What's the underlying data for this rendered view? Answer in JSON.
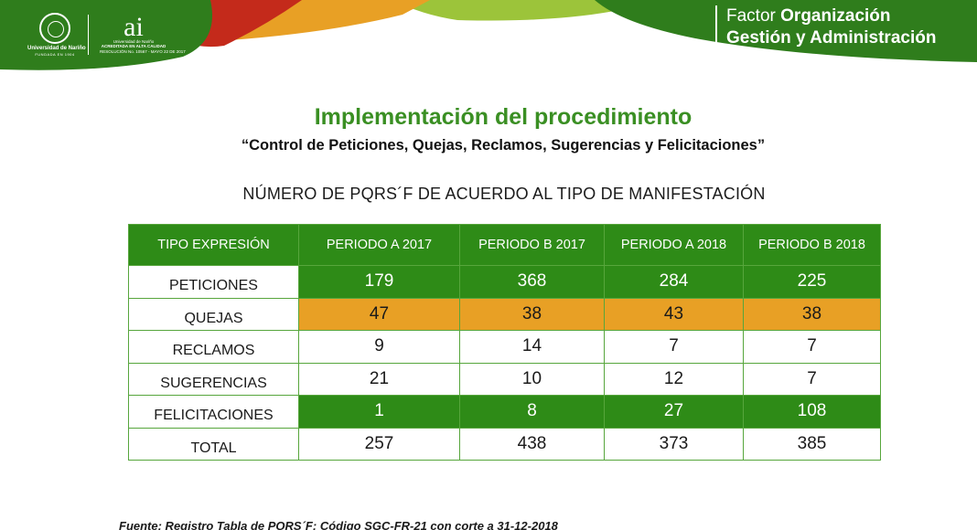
{
  "header": {
    "university_name": "Universidad de Nariño",
    "university_founded": "FUNDADA EN 1904",
    "ai_logo_text": "ai",
    "ai_logo_line1": "Universidad de Nariño",
    "ai_logo_line2": "ACREDITADA EN ALTA CALIDAD",
    "ai_logo_line3": "RESOLUCIÓN No. 10567 - MAYO 22 DE 2017",
    "factor_label": "Factor",
    "factor_name": "Organización",
    "factor_line2": "Gestión y Administración",
    "colors": {
      "green_dark": "#2f7d1c",
      "red": "#c42a1b",
      "orange": "#e8a025",
      "yellow_green": "#9cc43a"
    }
  },
  "title": "Implementación del procedimiento",
  "subtitle": "“Control de Peticiones, Quejas, Reclamos,  Sugerencias y Felicitaciones”",
  "section_title": "NÚMERO DE PQRS´F DE ACUERDO AL TIPO DE MANIFESTACIÓN",
  "table": {
    "headers": [
      "TIPO EXPRESIÓN",
      "PERIODO A 2017",
      "PERIODO B 2017",
      "PERIODO A 2018",
      "PERIODO B 2018"
    ],
    "rows": [
      {
        "label": "PETICIONES",
        "values": [
          "179",
          "368",
          "284",
          "225"
        ],
        "highlight": "green"
      },
      {
        "label": "QUEJAS",
        "values": [
          "47",
          "38",
          "43",
          "38"
        ],
        "highlight": "orange"
      },
      {
        "label": "RECLAMOS",
        "values": [
          "9",
          "14",
          "7",
          "7"
        ],
        "highlight": "none"
      },
      {
        "label": "SUGERENCIAS",
        "values": [
          "21",
          "10",
          "12",
          "7"
        ],
        "highlight": "none"
      },
      {
        "label": "FELICITACIONES",
        "values": [
          "1",
          "8",
          "27",
          "108"
        ],
        "highlight": "green"
      },
      {
        "label": "TOTAL",
        "values": [
          "257",
          "438",
          "373",
          "385"
        ],
        "highlight": "none"
      }
    ],
    "colors": {
      "header_bg": "#2e8b17",
      "green_row": "#2e8b17",
      "orange_row": "#e8a025",
      "border": "#57a63c"
    }
  },
  "footnote": "Fuente: Registro Tabla de PQRS´F: Código SGC-FR-21 con corte a 31-12-2018"
}
